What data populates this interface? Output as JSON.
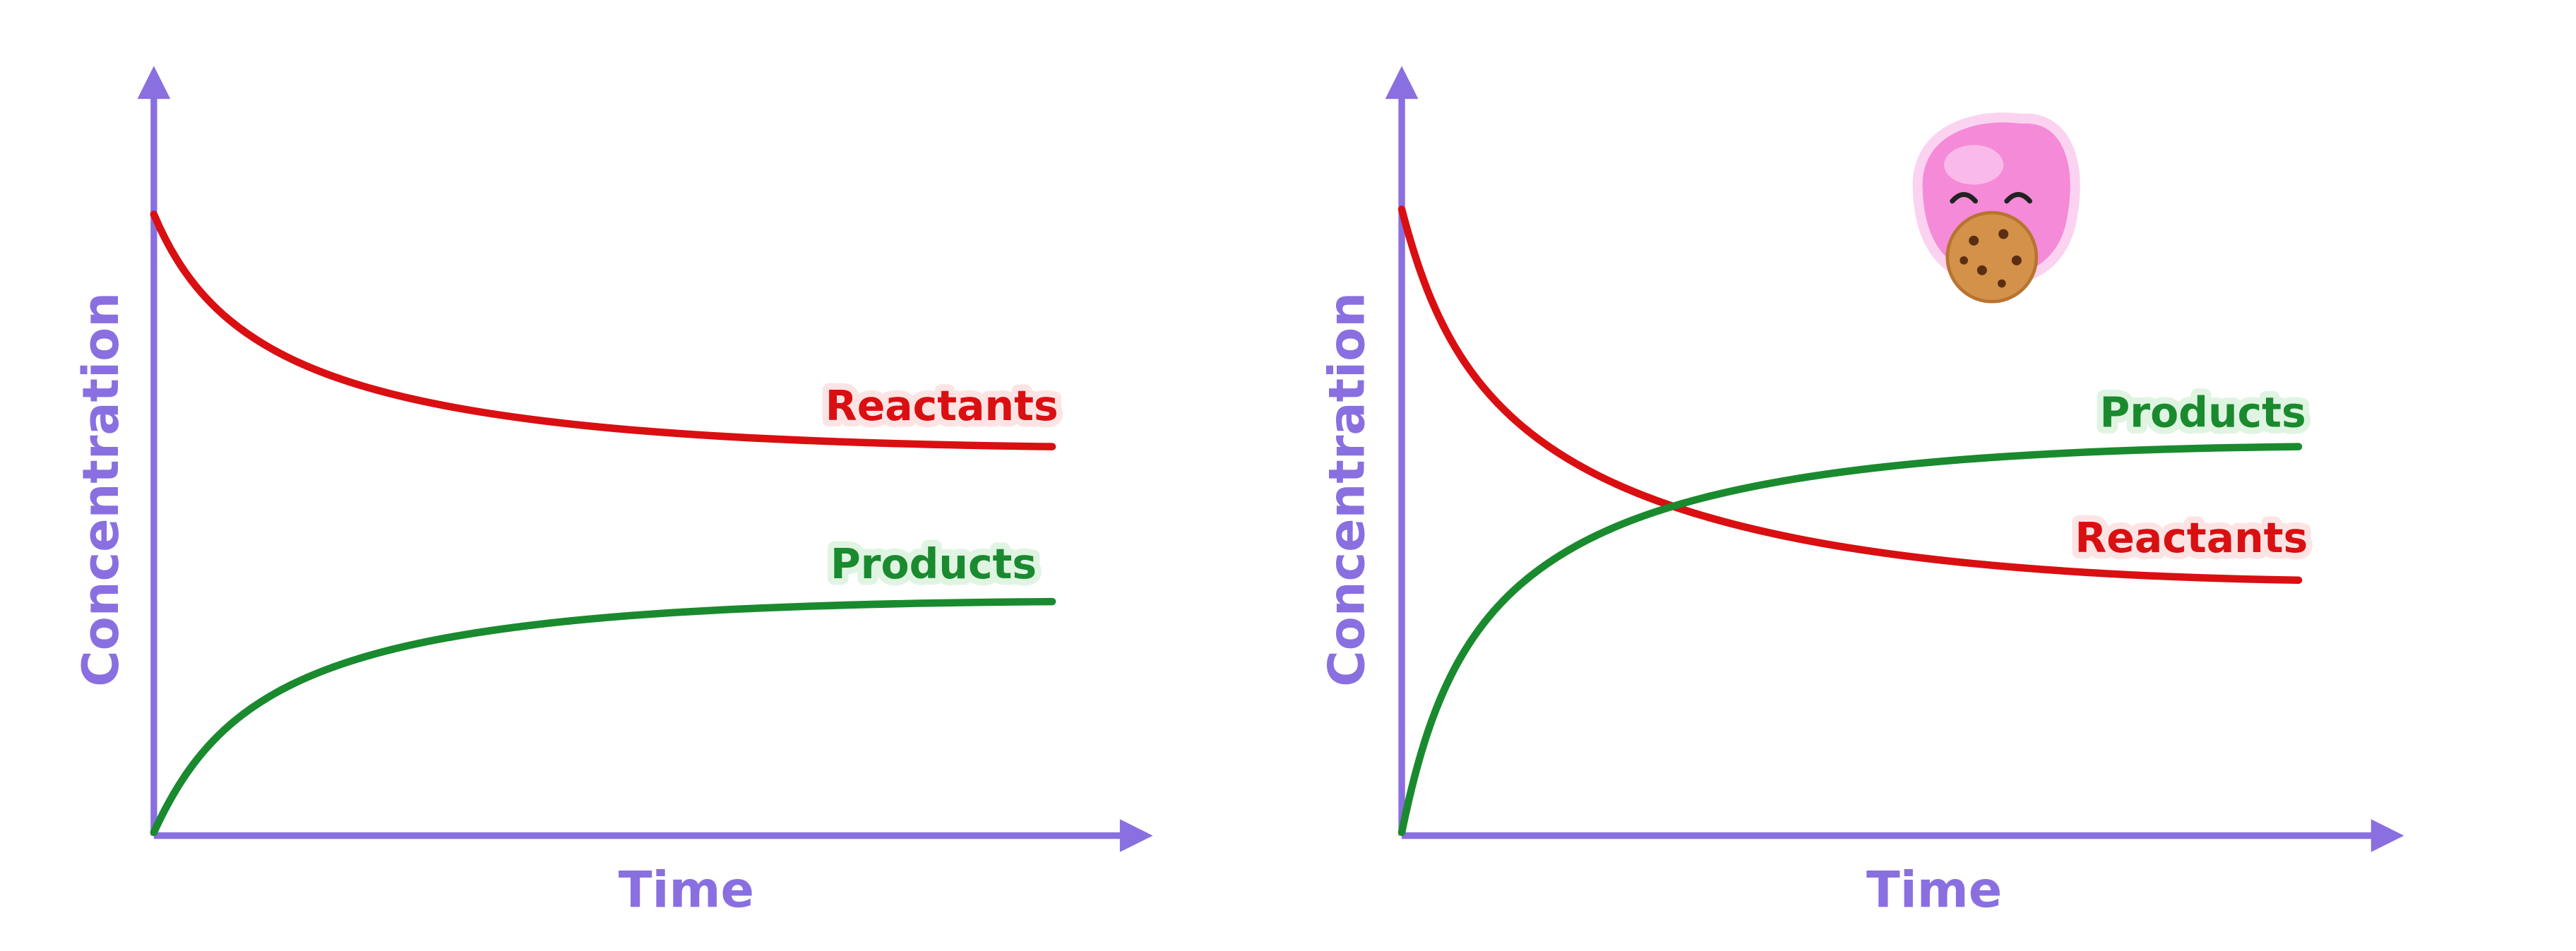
{
  "panels": [
    {
      "y_axis_label": "Concentration",
      "x_axis_label": "Time",
      "curves": [
        {
          "label": "Reactants"
        },
        {
          "label": "Products"
        }
      ]
    },
    {
      "y_axis_label": "Concentration",
      "x_axis_label": "Time",
      "curves": [
        {
          "label": "Products"
        },
        {
          "label": "Reactants"
        }
      ]
    }
  ]
}
